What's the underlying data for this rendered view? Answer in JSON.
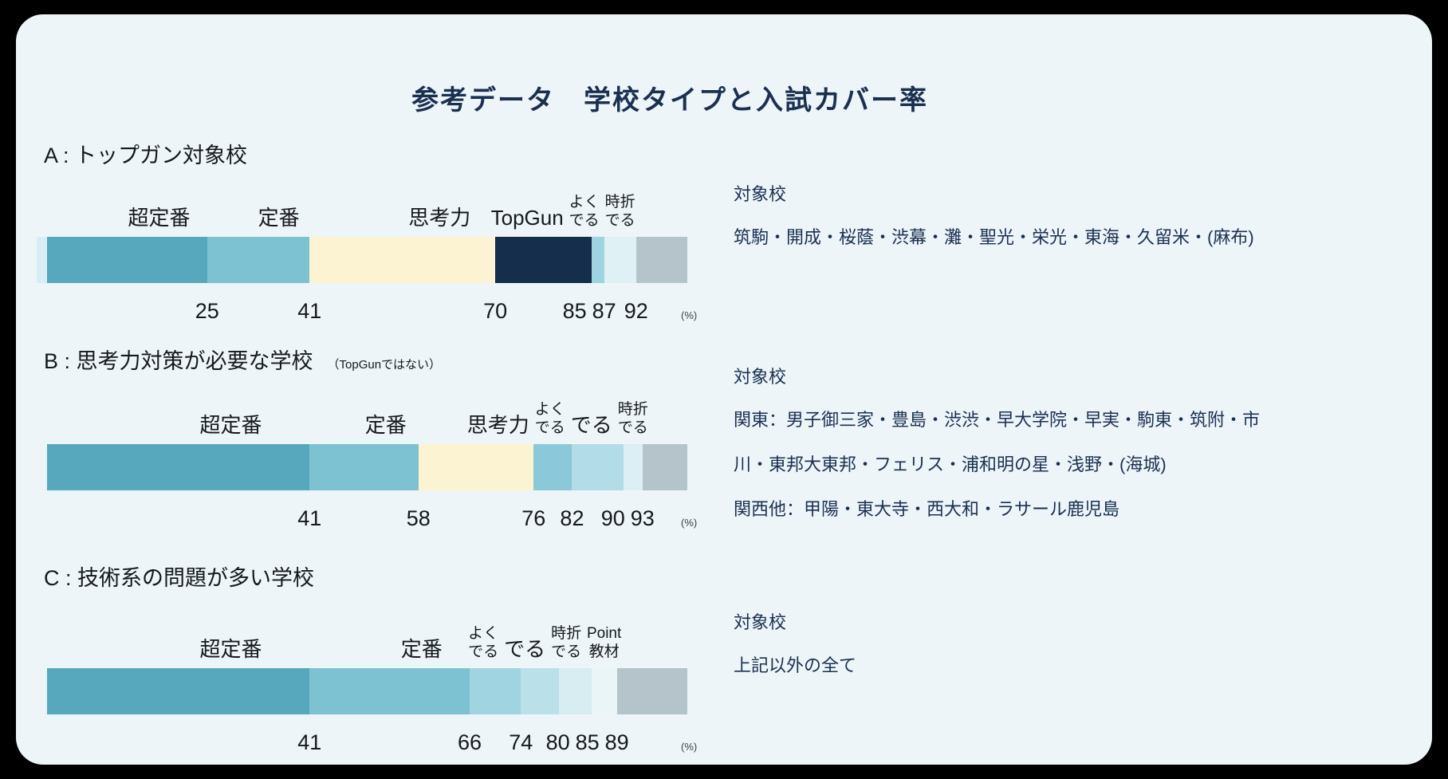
{
  "percent_suffix": "(%)",
  "targets_heading": "対象校",
  "colors": {
    "page_background": "#000000",
    "panel_background": "#edf5f9",
    "title_text": "#1b3050",
    "body_text": "#15181c",
    "targets_text": "#1b3050",
    "remainder_gray": "#b5c4ca"
  },
  "chart_data": {
    "type": "bar",
    "subtype": "stacked-horizontal-100pct",
    "title": "参考データ　学校タイプと入試カバー率",
    "unit": "%",
    "axis_max": 100,
    "bars": [
      {
        "id": "A",
        "heading": "A : トップガン対象校",
        "note": "",
        "lead": {
          "pct": 1.6,
          "color": "#d9edf4"
        },
        "segments": [
          {
            "label": "超定番",
            "start": 0,
            "end": 25,
            "color": "#57a8bd",
            "small": false,
            "numbered": true
          },
          {
            "label": "定番",
            "start": 25,
            "end": 41,
            "color": "#7cc2d3",
            "small": false,
            "numbered": true
          },
          {
            "label": "思考力",
            "start": 41,
            "end": 70,
            "color": "#fcf3d2",
            "small": false,
            "numbered": true
          },
          {
            "label": "TopGun",
            "start": 70,
            "end": 85,
            "color": "#142e4c",
            "small": false,
            "numbered": true
          },
          {
            "label": "よく\nでる",
            "start": 85,
            "end": 87,
            "color": "#9ed3e0",
            "small": true,
            "numbered": true
          },
          {
            "label": "時折\nでる",
            "start": 87,
            "end": 92,
            "color": "#e0f1f6",
            "small": true,
            "numbered": true
          },
          {
            "label": "",
            "start": 92,
            "end": 100,
            "color": "#b5c4ca",
            "small": false,
            "numbered": false
          }
        ],
        "targets": [
          "筑駒・開成・桜蔭・渋幕・灘・聖光・栄光・東海・久留米・(麻布)"
        ]
      },
      {
        "id": "B",
        "heading": "B : 思考力対策が必要な学校",
        "note": "（TopGunではない）",
        "lead": null,
        "segments": [
          {
            "label": "超定番",
            "start": 0,
            "end": 41,
            "color": "#57a8bd",
            "small": false,
            "numbered": true
          },
          {
            "label": "定番",
            "start": 41,
            "end": 58,
            "color": "#7cc2d3",
            "small": false,
            "numbered": true
          },
          {
            "label": "思考力",
            "start": 58,
            "end": 76,
            "color": "#fcf3d2",
            "small": false,
            "numbered": true
          },
          {
            "label": "よく\nでる",
            "start": 76,
            "end": 82,
            "color": "#8bc9da",
            "small": true,
            "numbered": true
          },
          {
            "label": "でる",
            "start": 82,
            "end": 90,
            "color": "#b2dce7",
            "small": false,
            "numbered": true
          },
          {
            "label": "時折\nでる",
            "start": 90,
            "end": 93,
            "color": "#dceff4",
            "small": true,
            "numbered": true
          },
          {
            "label": "",
            "start": 93,
            "end": 100,
            "color": "#b5c4ca",
            "small": false,
            "numbered": false
          }
        ],
        "targets": [
          "関東：男子御三家・豊島・渋渋・早大学院・早実・駒東・筑附・市川・東邦大東邦・フェリス・浦和明の星・浅野・(海城)",
          "関西他：甲陽・東大寺・西大和・ラサール鹿児島"
        ]
      },
      {
        "id": "C",
        "heading": "C : 技術系の問題が多い学校",
        "note": "",
        "lead": null,
        "segments": [
          {
            "label": "超定番",
            "start": 0,
            "end": 41,
            "color": "#57a8bd",
            "small": false,
            "numbered": true
          },
          {
            "label": "定番",
            "start": 41,
            "end": 66,
            "color": "#7cc2d3",
            "small": false,
            "numbered": true
          },
          {
            "label": "よく\nでる",
            "start": 66,
            "end": 74,
            "color": "#a0d4e1",
            "small": true,
            "numbered": true
          },
          {
            "label": "でる",
            "start": 74,
            "end": 80,
            "color": "#bae0ea",
            "small": false,
            "numbered": true
          },
          {
            "label": "時折\nでる",
            "start": 80,
            "end": 85,
            "color": "#d8edf2",
            "small": true,
            "numbered": true
          },
          {
            "label": "Point\n教材",
            "start": 85,
            "end": 89,
            "color": "#eaf5f8",
            "small": true,
            "numbered": true
          },
          {
            "label": "",
            "start": 89,
            "end": 100,
            "color": "#b5c4ca",
            "small": false,
            "numbered": false
          }
        ],
        "targets": [
          "上記以外の全て"
        ]
      }
    ]
  }
}
